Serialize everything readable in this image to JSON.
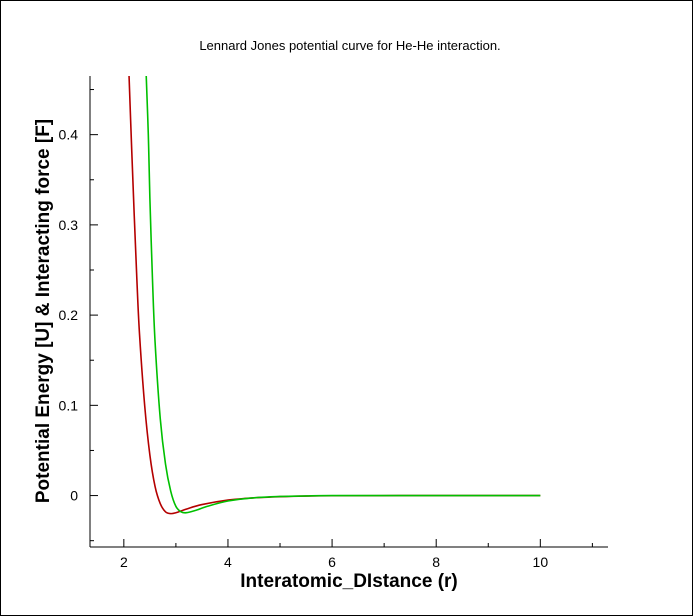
{
  "chart_data": {
    "type": "line",
    "title": "Lennard Jones potential curve for He-He interaction.",
    "xlabel": "Interatomic_DIstance (r)",
    "ylabel": "Potential Energy [U] & Interacting force [F]",
    "xlim": [
      1.35,
      11.3
    ],
    "ylim": [
      -0.057,
      0.465
    ],
    "x_ticks": [
      2,
      4,
      6,
      8,
      10
    ],
    "x_tick_labels": [
      "2",
      "4",
      "6",
      "8",
      "10"
    ],
    "y_ticks": [
      0,
      0.1,
      0.2,
      0.3,
      0.4
    ],
    "y_tick_labels": [
      "0",
      "0.1",
      "0.2",
      "0.3",
      "0.4"
    ],
    "grid": false,
    "series": [
      {
        "color": "#b40000",
        "x": [
          2.1,
          2.15,
          2.2,
          2.25,
          2.3,
          2.4,
          2.5,
          2.6,
          2.7,
          2.8,
          2.9,
          3.0,
          3.2,
          3.5,
          4.0,
          4.5,
          5.0,
          5.5,
          6.0,
          8.0,
          10.0
        ],
        "y": [
          0.465,
          0.385,
          0.31,
          0.24,
          0.18,
          0.1,
          0.045,
          0.01,
          -0.009,
          -0.018,
          -0.02,
          -0.019,
          -0.015,
          -0.01,
          -0.005,
          -0.0025,
          -0.0012,
          -0.0005,
          -0.0002,
          0.0,
          0.0
        ]
      },
      {
        "color": "#00c000",
        "x": [
          2.43,
          2.47,
          2.5,
          2.55,
          2.6,
          2.7,
          2.8,
          2.9,
          3.0,
          3.1,
          3.2,
          3.4,
          3.6,
          4.0,
          4.5,
          5.0,
          5.5,
          6.0,
          8.0,
          10.0
        ],
        "y": [
          0.465,
          0.4,
          0.33,
          0.24,
          0.17,
          0.085,
          0.035,
          0.005,
          -0.012,
          -0.018,
          -0.019,
          -0.016,
          -0.012,
          -0.006,
          -0.0025,
          -0.001,
          -0.0004,
          0.0,
          0.0,
          0.0
        ]
      }
    ]
  }
}
